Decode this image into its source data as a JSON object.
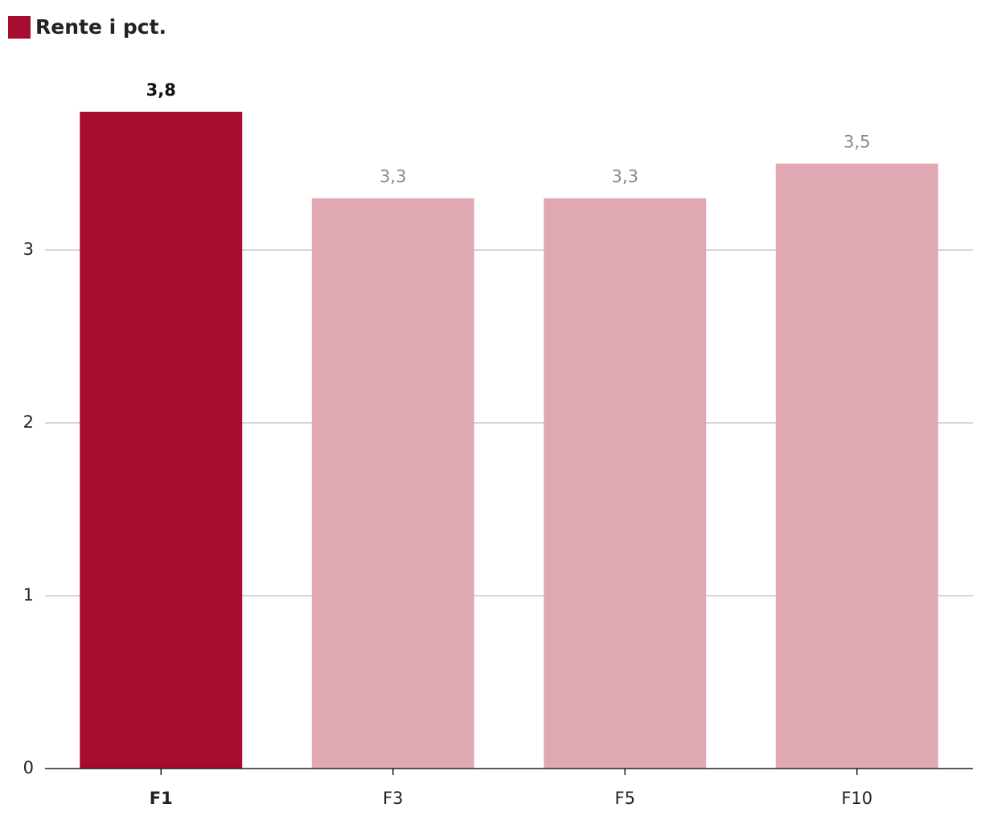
{
  "chart_data": {
    "type": "bar",
    "series": [
      {
        "name": "Rente i pct.",
        "color": "#a50c2e",
        "values": [
          3.8,
          3.3,
          3.3,
          3.5
        ],
        "value_labels": [
          "3,8",
          "3,3",
          "3,3",
          "3,5"
        ],
        "colors": [
          "#a50c2e",
          "#e0a8b3",
          "#e0a8b3",
          "#e0a8b3"
        ]
      }
    ],
    "categories": [
      "F1",
      "F3",
      "F5",
      "F10"
    ],
    "ylim": [
      0,
      4
    ],
    "yticks": [
      0,
      1,
      2,
      3
    ],
    "grid": true,
    "legend": "top-left"
  }
}
